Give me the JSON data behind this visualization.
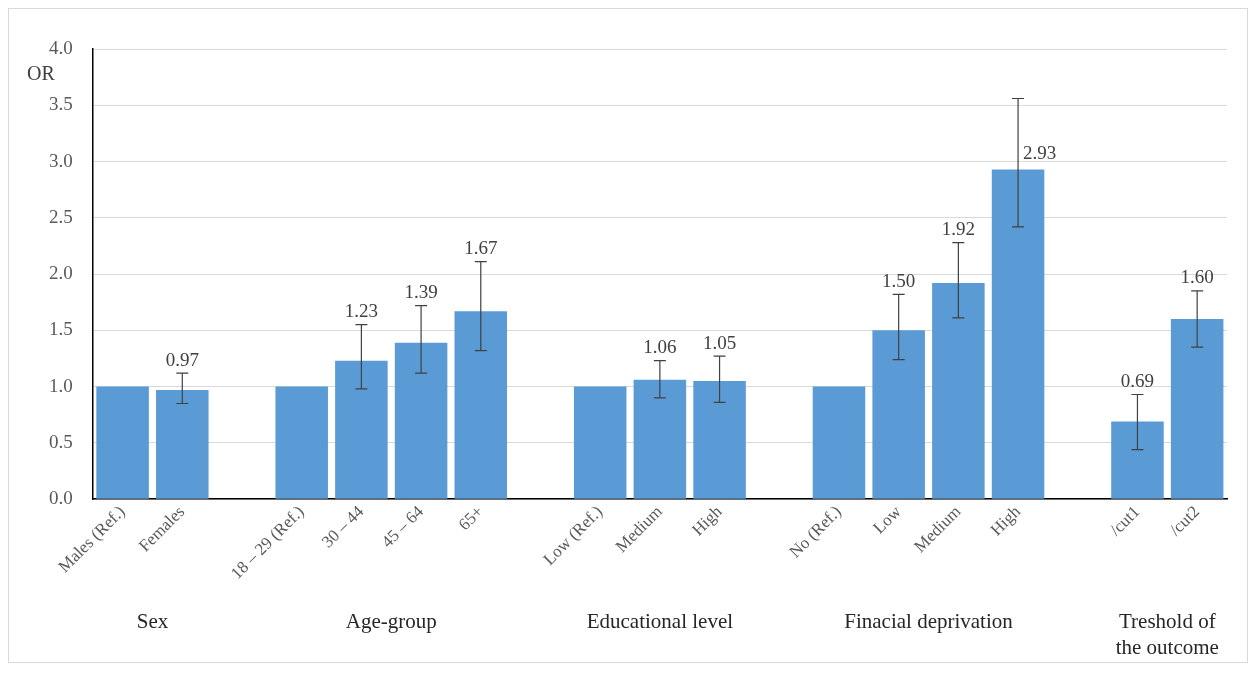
{
  "chart_data": {
    "type": "bar",
    "ylabel": "OR",
    "categories": [
      "Males (Ref.)",
      "Females",
      null,
      "18 – 29 (Ref.)",
      "30 – 44",
      "45 – 64",
      "65+",
      null,
      "Low (Ref.)",
      "Medium",
      "High",
      null,
      "No (Ref.)",
      "Low",
      "Medium",
      "High",
      null,
      "/cut1",
      "/cut2"
    ],
    "values": [
      1,
      0.97,
      null,
      1,
      1.23,
      1.39,
      1.67,
      null,
      1,
      1.06,
      1.05,
      null,
      1,
      1.5,
      1.92,
      2.93,
      null,
      0.69,
      1.6
    ],
    "errors": [
      null,
      [
        0.85,
        1.12
      ],
      null,
      null,
      [
        0.98,
        1.55
      ],
      [
        1.12,
        1.72
      ],
      [
        1.32,
        2.11
      ],
      null,
      null,
      [
        0.9,
        1.23
      ],
      [
        0.86,
        1.27
      ],
      null,
      null,
      [
        1.24,
        1.82
      ],
      [
        1.61,
        2.28
      ],
      [
        2.42,
        3.56
      ],
      null,
      [
        0.44,
        0.93
      ],
      [
        1.35,
        1.85
      ]
    ],
    "value_labels": [
      null,
      "0.97",
      null,
      null,
      "1.23",
      "1.39",
      "1.67",
      null,
      null,
      "1.06",
      "1.05",
      null,
      null,
      "1.50",
      "1.92",
      "2.93",
      null,
      "0.69",
      "1.60"
    ],
    "color": "#5b9bd5",
    "ylim": [
      0,
      4
    ],
    "yticks": [
      {
        "value": 0,
        "label": "0.0"
      },
      {
        "value": 0.5,
        "label": "0.5"
      },
      {
        "value": 1,
        "label": "1.0"
      },
      {
        "value": 1.5,
        "label": "1.5"
      },
      {
        "value": 2,
        "label": "2.0"
      },
      {
        "value": 2.5,
        "label": "2.5"
      },
      {
        "value": 3,
        "label": "3.0"
      },
      {
        "value": 3.5,
        "label": "3.5"
      },
      {
        "value": 4,
        "label": "4.0"
      }
    ],
    "grid": "y",
    "legend": false,
    "annotations": [
      "Sex",
      "Age-group",
      "Educational level",
      "Finacial deprivation",
      "Treshold of the outcome"
    ]
  }
}
